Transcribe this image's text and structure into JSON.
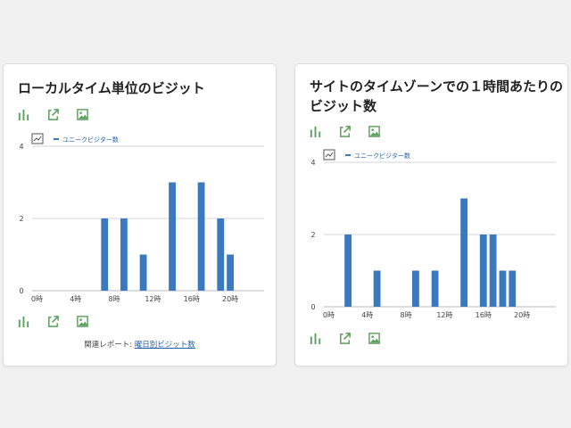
{
  "cards": {
    "local": {
      "title": "ローカルタイム単位のビジット",
      "related_prefix": "関連レポート:",
      "related_link": "曜日別ビジット数"
    },
    "site": {
      "title_line1": "サイトのタイムゾーンでの１時間あたりの",
      "title_line2": "ビジット数"
    }
  },
  "icons": {
    "bar": "bar-chart-icon",
    "export": "export-icon",
    "image": "image-icon",
    "legend_toggle": "chart-toggle-icon"
  },
  "colors": {
    "bar": "#3a78c0",
    "toolbar_icon": "#5aa05a",
    "grid": "#d4d4d4",
    "link": "#1f5fa8"
  },
  "chart_data": [
    {
      "type": "bar",
      "legend": "ユニークビジター数",
      "x": [
        0,
        1,
        2,
        3,
        4,
        5,
        6,
        7,
        8,
        9,
        10,
        11,
        12,
        13,
        14,
        15,
        16,
        17,
        18,
        19,
        20,
        21,
        22,
        23
      ],
      "values": [
        0,
        0,
        0,
        0,
        0,
        0,
        0,
        2,
        0,
        2,
        0,
        1,
        0,
        0,
        3,
        0,
        0,
        3,
        0,
        2,
        1,
        0,
        0,
        0
      ],
      "xticks": [
        "0時",
        "4時",
        "8時",
        "12時",
        "16時",
        "20時"
      ],
      "yticks": [
        "0",
        "2",
        "4"
      ],
      "ylim": [
        0,
        4
      ]
    },
    {
      "type": "bar",
      "legend": "ユニークビジター数",
      "x": [
        0,
        1,
        2,
        3,
        4,
        5,
        6,
        7,
        8,
        9,
        10,
        11,
        12,
        13,
        14,
        15,
        16,
        17,
        18,
        19,
        20,
        21,
        22,
        23
      ],
      "values": [
        0,
        0,
        2,
        0,
        0,
        1,
        0,
        0,
        0,
        1,
        0,
        1,
        0,
        0,
        3,
        0,
        2,
        2,
        1,
        1,
        0,
        0,
        0,
        0
      ],
      "xticks": [
        "0時",
        "4時",
        "8時",
        "12時",
        "16時",
        "20時"
      ],
      "yticks": [
        "0",
        "2",
        "4"
      ],
      "ylim": [
        0,
        4
      ]
    }
  ]
}
